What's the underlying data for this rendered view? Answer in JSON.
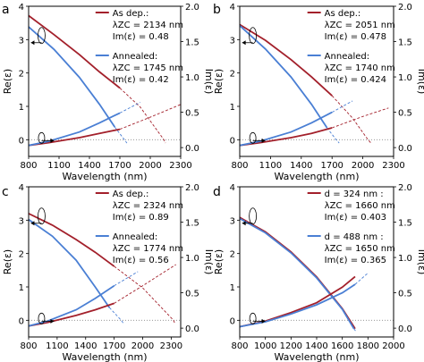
{
  "figure": {
    "colors": {
      "red": "#a3202b",
      "blue": "#4a7fd4",
      "gray": "#888888",
      "black": "#000000"
    },
    "xlabel": "Wavelength (nm)",
    "ylabel_left": "Re(ε)",
    "ylabel_right": "Im(ε)"
  },
  "chart_data": [
    {
      "panel": "a",
      "type": "line",
      "xlim": [
        800,
        2300
      ],
      "xticks": [
        "800",
        "1100",
        "1400",
        "1700",
        "2000",
        "2300"
      ],
      "ylim_left": [
        -0.5,
        4
      ],
      "yticks_left": [
        "0",
        "1",
        "2",
        "3",
        "4"
      ],
      "ylim_right": [
        -0.125,
        2.0
      ],
      "yticks_right": [
        "0.0",
        "0.5",
        "1.0",
        "1.5",
        "2.0"
      ],
      "zero_line": true,
      "legend": [
        {
          "title": "As dep.:",
          "color": "red",
          "lines": [
            "λZC = 2134 nm",
            "Im(ε) = 0.48"
          ]
        },
        {
          "title": "Annealed:",
          "color": "blue",
          "lines": [
            "λZC = 1745 nm",
            "Im(ε) = 0.42"
          ]
        }
      ],
      "series": [
        {
          "color": "red",
          "axis": "left",
          "lzc": 2134,
          "solid": [
            [
              800,
              3.72
            ],
            [
              1050,
              3.15
            ],
            [
              1300,
              2.55
            ],
            [
              1500,
              2.03
            ],
            [
              1700,
              1.55
            ]
          ],
          "dashed": [
            [
              1700,
              1.55
            ],
            [
              1900,
              0.98
            ],
            [
              2134,
              0.0
            ],
            [
              2150,
              -0.1
            ]
          ]
        },
        {
          "color": "blue",
          "axis": "left",
          "lzc": 1745,
          "solid": [
            [
              800,
              3.38
            ],
            [
              1050,
              2.71
            ],
            [
              1300,
              1.87
            ],
            [
              1500,
              1.06
            ],
            [
              1650,
              0.38
            ]
          ],
          "dashed": [
            [
              1650,
              0.38
            ],
            [
              1745,
              0.0
            ],
            [
              1770,
              -0.1
            ]
          ]
        },
        {
          "color": "red",
          "axis": "right",
          "solid": [
            [
              800,
              0.03
            ],
            [
              1000,
              0.07
            ],
            [
              1300,
              0.14
            ],
            [
              1500,
              0.2
            ],
            [
              1700,
              0.26
            ]
          ],
          "dashed": [
            [
              1700,
              0.26
            ],
            [
              2000,
              0.43
            ],
            [
              2300,
              0.61
            ]
          ]
        },
        {
          "color": "blue",
          "axis": "right",
          "solid": [
            [
              800,
              0.03
            ],
            [
              1000,
              0.09
            ],
            [
              1300,
              0.22
            ],
            [
              1500,
              0.35
            ],
            [
              1700,
              0.49
            ]
          ],
          "dashed": [
            [
              1700,
              0.49
            ],
            [
              1900,
              0.64
            ]
          ]
        }
      ]
    },
    {
      "panel": "b",
      "type": "line",
      "xlim": [
        800,
        2300
      ],
      "xticks": [
        "800",
        "1100",
        "1400",
        "1700",
        "2000",
        "2300"
      ],
      "ylim_left": [
        -0.5,
        4
      ],
      "yticks_left": [
        "0",
        "1",
        "2",
        "3",
        "4"
      ],
      "ylim_right": [
        -0.125,
        2.0
      ],
      "yticks_right": [
        "0.0",
        "0.5",
        "1.0",
        "1.5",
        "2.0"
      ],
      "zero_line": true,
      "legend": [
        {
          "title": "As dep.:",
          "color": "red",
          "lines": [
            "λZC = 2051 nm",
            "Im(ε) = 0.478"
          ]
        },
        {
          "title": "Annealed:",
          "color": "blue",
          "lines": [
            "λZC = 1740 nm",
            "Im(ε) = 0.424"
          ]
        }
      ],
      "series": [
        {
          "color": "red",
          "axis": "left",
          "lzc": 2051,
          "solid": [
            [
              800,
              3.45
            ],
            [
              1050,
              2.98
            ],
            [
              1300,
              2.4
            ],
            [
              1500,
              1.88
            ],
            [
              1700,
              1.32
            ]
          ],
          "dashed": [
            [
              1700,
              1.32
            ],
            [
              1900,
              0.65
            ],
            [
              2051,
              0.0
            ],
            [
              2080,
              -0.1
            ]
          ]
        },
        {
          "color": "blue",
          "axis": "left",
          "lzc": 1740,
          "solid": [
            [
              800,
              3.42
            ],
            [
              1050,
              2.72
            ],
            [
              1300,
              1.88
            ],
            [
              1500,
              1.06
            ],
            [
              1650,
              0.36
            ]
          ],
          "dashed": [
            [
              1650,
              0.36
            ],
            [
              1740,
              0.0
            ],
            [
              1770,
              -0.1
            ]
          ]
        },
        {
          "color": "red",
          "axis": "right",
          "solid": [
            [
              800,
              0.03
            ],
            [
              1000,
              0.07
            ],
            [
              1300,
              0.14
            ],
            [
              1500,
              0.2
            ],
            [
              1700,
              0.28
            ]
          ],
          "dashed": [
            [
              1700,
              0.28
            ],
            [
              2000,
              0.44
            ],
            [
              2250,
              0.56
            ]
          ]
        },
        {
          "color": "blue",
          "axis": "right",
          "solid": [
            [
              800,
              0.03
            ],
            [
              1000,
              0.09
            ],
            [
              1300,
              0.22
            ],
            [
              1500,
              0.35
            ],
            [
              1700,
              0.5
            ]
          ],
          "dashed": [
            [
              1700,
              0.5
            ],
            [
              1900,
              0.66
            ]
          ]
        }
      ]
    },
    {
      "panel": "c",
      "type": "line",
      "xlim": [
        800,
        2400
      ],
      "xticks": [
        "800",
        "1100",
        "1400",
        "1700",
        "2000",
        "2300"
      ],
      "ylim_left": [
        -0.5,
        4
      ],
      "yticks_left": [
        "0",
        "1",
        "2",
        "3",
        "4"
      ],
      "ylim_right": [
        -0.125,
        2.0
      ],
      "yticks_right": [
        "0.0",
        "0.5",
        "1.0",
        "1.5",
        "2.0"
      ],
      "zero_line": true,
      "legend": [
        {
          "title": "As dep.:",
          "color": "red",
          "lines": [
            "λZC = 2324 nm",
            "Im(ε) = 0.89"
          ]
        },
        {
          "title": "Annealed:",
          "color": "blue",
          "lines": [
            "λZC = 1774 nm",
            "Im(ε) = 0.56"
          ]
        }
      ],
      "series": [
        {
          "color": "red",
          "axis": "left",
          "lzc": 2324,
          "solid": [
            [
              800,
              3.2
            ],
            [
              1050,
              2.85
            ],
            [
              1300,
              2.42
            ],
            [
              1500,
              2.04
            ],
            [
              1700,
              1.62
            ]
          ],
          "dashed": [
            [
              1700,
              1.62
            ],
            [
              2000,
              0.97
            ],
            [
              2324,
              0.0
            ],
            [
              2340,
              -0.1
            ]
          ]
        },
        {
          "color": "blue",
          "axis": "left",
          "lzc": 1774,
          "solid": [
            [
              800,
              3.02
            ],
            [
              1050,
              2.52
            ],
            [
              1300,
              1.8
            ],
            [
              1500,
              1.0
            ],
            [
              1650,
              0.38
            ]
          ],
          "dashed": [
            [
              1650,
              0.38
            ],
            [
              1774,
              0.0
            ],
            [
              1800,
              -0.1
            ]
          ]
        },
        {
          "color": "red",
          "axis": "right",
          "solid": [
            [
              800,
              0.03
            ],
            [
              1000,
              0.08
            ],
            [
              1300,
              0.18
            ],
            [
              1500,
              0.26
            ],
            [
              1700,
              0.35
            ]
          ],
          "dashed": [
            [
              1700,
              0.35
            ],
            [
              2000,
              0.6
            ],
            [
              2350,
              0.9
            ]
          ]
        },
        {
          "color": "blue",
          "axis": "right",
          "solid": [
            [
              800,
              0.03
            ],
            [
              1000,
              0.1
            ],
            [
              1300,
              0.26
            ],
            [
              1500,
              0.42
            ],
            [
              1700,
              0.6
            ]
          ],
          "dashed": [
            [
              1700,
              0.6
            ],
            [
              1950,
              0.8
            ]
          ]
        }
      ]
    },
    {
      "panel": "d",
      "type": "line",
      "xlim": [
        800,
        2000
      ],
      "xticks": [
        "800",
        "1000",
        "1200",
        "1400",
        "1600",
        "1800",
        "2000"
      ],
      "ylim_left": [
        -0.5,
        4
      ],
      "yticks_left": [
        "0",
        "1",
        "2",
        "3",
        "4"
      ],
      "ylim_right": [
        -0.125,
        2.0
      ],
      "yticks_right": [
        "0.0",
        "0.5",
        "1.0",
        "1.5",
        "2.0"
      ],
      "zero_line": true,
      "legend": [
        {
          "title": "d = 324 nm :",
          "color": "red",
          "lines": [
            "λZC = 1660 nm",
            "Im(ε) = 0.403"
          ]
        },
        {
          "title": "d = 488 nm :",
          "color": "blue",
          "lines": [
            "λZC = 1650 nm",
            "Im(ε) = 0.365"
          ]
        }
      ],
      "series": [
        {
          "color": "red",
          "axis": "left",
          "lzc": 1660,
          "solid": [
            [
              800,
              3.08
            ],
            [
              1000,
              2.65
            ],
            [
              1200,
              2.05
            ],
            [
              1400,
              1.3
            ],
            [
              1600,
              0.35
            ],
            [
              1700,
              -0.25
            ]
          ]
        },
        {
          "color": "blue",
          "axis": "left",
          "lzc": 1650,
          "solid": [
            [
              800,
              3.05
            ],
            [
              1000,
              2.62
            ],
            [
              1200,
              2.02
            ],
            [
              1400,
              1.27
            ],
            [
              1600,
              0.33
            ],
            [
              1690,
              -0.25
            ]
          ],
          "dashed": [
            [
              1690,
              -0.25
            ],
            [
              1710,
              -0.35
            ]
          ]
        },
        {
          "color": "red",
          "axis": "right",
          "solid": [
            [
              800,
              0.02
            ],
            [
              1000,
              0.1
            ],
            [
              1200,
              0.22
            ],
            [
              1400,
              0.36
            ],
            [
              1600,
              0.58
            ],
            [
              1700,
              0.73
            ]
          ]
        },
        {
          "color": "blue",
          "axis": "right",
          "solid": [
            [
              800,
              0.02
            ],
            [
              1000,
              0.09
            ],
            [
              1200,
              0.2
            ],
            [
              1400,
              0.33
            ],
            [
              1600,
              0.5
            ],
            [
              1700,
              0.62
            ]
          ],
          "dashed": [
            [
              1700,
              0.62
            ],
            [
              1800,
              0.78
            ]
          ]
        }
      ]
    }
  ]
}
